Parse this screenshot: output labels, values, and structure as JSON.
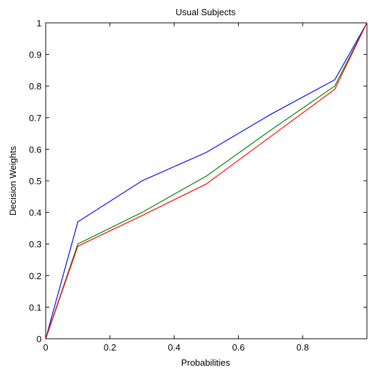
{
  "chart_data": {
    "type": "line",
    "title": "Usual Subjects",
    "xlabel": "Probabilities",
    "ylabel": "Decision Weights",
    "xlim": [
      0,
      1
    ],
    "ylim": [
      0,
      1
    ],
    "xticks": [
      0,
      0.2,
      0.4,
      0.6,
      0.8
    ],
    "xtick_labels": [
      "0",
      "0.2",
      "0.4",
      "0.6",
      "0.8"
    ],
    "yticks": [
      0,
      0.1,
      0.2,
      0.3,
      0.4,
      0.5,
      0.6,
      0.7,
      0.8,
      0.9,
      1
    ],
    "ytick_labels": [
      "0",
      "0.1",
      "0.2",
      "0.3",
      "0.4",
      "0.5",
      "0.6",
      "0.7",
      "0.8",
      "0.9",
      "1"
    ],
    "grid": false,
    "legend": "none",
    "series": [
      {
        "color": "#0000ff",
        "points": [
          [
            0,
            0
          ],
          [
            0.1,
            0.37
          ],
          [
            0.3,
            0.5
          ],
          [
            0.5,
            0.59
          ],
          [
            0.7,
            0.71
          ],
          [
            0.9,
            0.82
          ],
          [
            1,
            1
          ]
        ]
      },
      {
        "color": "#008000",
        "points": [
          [
            0,
            0
          ],
          [
            0.1,
            0.3
          ],
          [
            0.3,
            0.4
          ],
          [
            0.5,
            0.515
          ],
          [
            0.7,
            0.66
          ],
          [
            0.9,
            0.8
          ],
          [
            1,
            1
          ]
        ]
      },
      {
        "color": "#ff0000",
        "points": [
          [
            0,
            0
          ],
          [
            0.1,
            0.293
          ],
          [
            0.3,
            0.39
          ],
          [
            0.5,
            0.49
          ],
          [
            0.7,
            0.64
          ],
          [
            0.9,
            0.79
          ],
          [
            1,
            1
          ]
        ]
      }
    ]
  }
}
